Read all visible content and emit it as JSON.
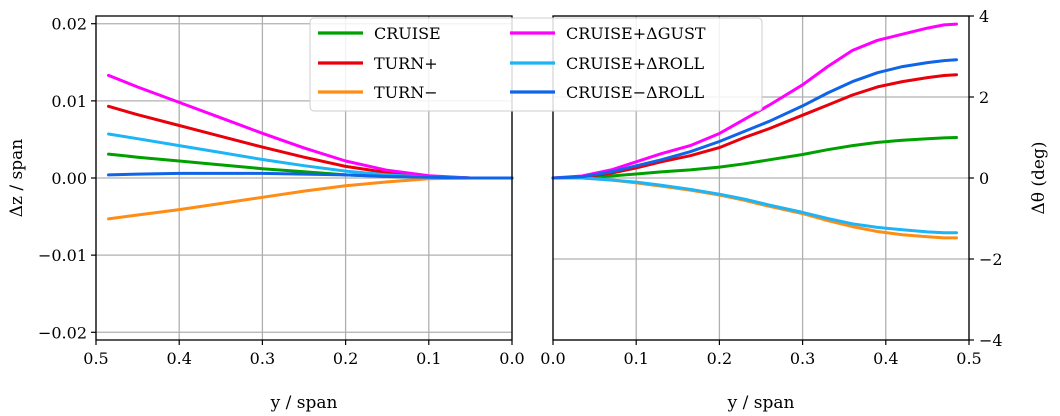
{
  "chart_data": [
    {
      "type": "line",
      "panel": "left",
      "xlabel": "y / span",
      "ylabel": "Δz / span",
      "xlim": [
        0.5,
        0.0
      ],
      "ylim": [
        -0.021,
        0.021
      ],
      "xticks": [
        0.5,
        0.4,
        0.3,
        0.2,
        0.1,
        0.0
      ],
      "xtick_labels": [
        "0.5",
        "0.4",
        "0.3",
        "0.2",
        "0.1",
        "0.0"
      ],
      "yticks": [
        -0.02,
        -0.01,
        0.0,
        0.01,
        0.02
      ],
      "ytick_labels": [
        "−0.02",
        "−0.01",
        "0.00",
        "0.01",
        "0.02"
      ],
      "grid": true,
      "x": [
        0.485,
        0.45,
        0.4,
        0.35,
        0.3,
        0.25,
        0.2,
        0.15,
        0.1,
        0.05,
        0.0
      ],
      "series": [
        {
          "name": "CRUISE",
          "color": "#00a000",
          "values": [
            0.0031,
            0.0027,
            0.0022,
            0.0017,
            0.0012,
            0.0008,
            0.0004,
            0.0002,
            0.0001,
            0.0,
            0.0
          ]
        },
        {
          "name": "TURN+",
          "color": "#e8000b",
          "values": [
            0.0093,
            0.0082,
            0.0068,
            0.0054,
            0.004,
            0.0027,
            0.0015,
            0.0007,
            0.0002,
            0.0,
            0.0
          ]
        },
        {
          "name": "TURN−",
          "color": "#ff8c14",
          "values": [
            -0.0053,
            -0.0048,
            -0.0041,
            -0.0033,
            -0.0025,
            -0.0017,
            -0.001,
            -0.0005,
            -0.0001,
            0.0,
            0.0
          ]
        },
        {
          "name": "CRUISE+ΔGUST",
          "color": "#ff00ff",
          "values": [
            0.0133,
            0.0118,
            0.0098,
            0.0078,
            0.0058,
            0.0039,
            0.0022,
            0.001,
            0.0003,
            0.0,
            0.0
          ]
        },
        {
          "name": "CRUISE+ΔROLL",
          "color": "#1cb5f5",
          "values": [
            0.0057,
            0.0051,
            0.0042,
            0.0033,
            0.0024,
            0.0016,
            0.0009,
            0.0004,
            0.0001,
            0.0,
            0.0
          ]
        },
        {
          "name": "CRUISE−ΔROLL",
          "color": "#1064e8",
          "values": [
            0.0004,
            0.0005,
            0.0006,
            0.0006,
            0.0006,
            0.0005,
            0.0004,
            0.0002,
            0.0001,
            0.0,
            0.0
          ]
        }
      ]
    },
    {
      "type": "line",
      "panel": "right",
      "xlabel": "y / span",
      "ylabel": "Δθ (deg)",
      "xlim": [
        0.0,
        0.5
      ],
      "ylim": [
        -4,
        4
      ],
      "xticks": [
        0.0,
        0.1,
        0.2,
        0.3,
        0.4,
        0.5
      ],
      "xtick_labels": [
        "0.0",
        "0.1",
        "0.2",
        "0.3",
        "0.4",
        "0.5"
      ],
      "yticks": [
        -4,
        -2,
        0,
        2,
        4
      ],
      "ytick_labels": [
        "−4",
        "−2",
        "0",
        "2",
        "4"
      ],
      "grid": true,
      "x": [
        0.0,
        0.035,
        0.07,
        0.1,
        0.13,
        0.165,
        0.2,
        0.23,
        0.26,
        0.3,
        0.33,
        0.36,
        0.39,
        0.42,
        0.45,
        0.47,
        0.485
      ],
      "series": [
        {
          "name": "CRUISE",
          "color": "#00a000",
          "values": [
            0.0,
            0.0,
            0.05,
            0.1,
            0.15,
            0.2,
            0.27,
            0.35,
            0.45,
            0.58,
            0.7,
            0.8,
            0.88,
            0.93,
            0.97,
            0.99,
            1.0
          ]
        },
        {
          "name": "TURN+",
          "color": "#e8000b",
          "values": [
            0.0,
            0.02,
            0.12,
            0.25,
            0.4,
            0.55,
            0.75,
            1.0,
            1.22,
            1.55,
            1.8,
            2.05,
            2.25,
            2.38,
            2.48,
            2.53,
            2.55
          ]
        },
        {
          "name": "TURN−",
          "color": "#ff8c14",
          "values": [
            0.0,
            0.0,
            -0.05,
            -0.12,
            -0.2,
            -0.3,
            -0.42,
            -0.55,
            -0.7,
            -0.88,
            -1.05,
            -1.2,
            -1.32,
            -1.4,
            -1.45,
            -1.48,
            -1.48
          ]
        },
        {
          "name": "CRUISE+ΔGUST",
          "color": "#ff00ff",
          "values": [
            0.0,
            0.05,
            0.2,
            0.4,
            0.6,
            0.8,
            1.1,
            1.45,
            1.8,
            2.3,
            2.75,
            3.15,
            3.4,
            3.55,
            3.7,
            3.78,
            3.8
          ]
        },
        {
          "name": "CRUISE+ΔROLL",
          "color": "#1cb5f5",
          "values": [
            0.0,
            0.0,
            -0.05,
            -0.1,
            -0.18,
            -0.28,
            -0.4,
            -0.52,
            -0.67,
            -0.85,
            -1.0,
            -1.13,
            -1.22,
            -1.28,
            -1.33,
            -1.35,
            -1.35
          ]
        },
        {
          "name": "CRUISE−ΔROLL",
          "color": "#1064e8",
          "values": [
            0.0,
            0.03,
            0.15,
            0.3,
            0.45,
            0.65,
            0.9,
            1.15,
            1.4,
            1.78,
            2.1,
            2.38,
            2.6,
            2.75,
            2.85,
            2.9,
            2.92
          ]
        }
      ]
    }
  ],
  "legend": {
    "placement": "top-center",
    "columns": 2,
    "entries": [
      "CRUISE",
      "TURN+",
      "TURN−",
      "CRUISE+ΔGUST",
      "CRUISE+ΔROLL",
      "CRUISE−ΔROLL"
    ]
  }
}
